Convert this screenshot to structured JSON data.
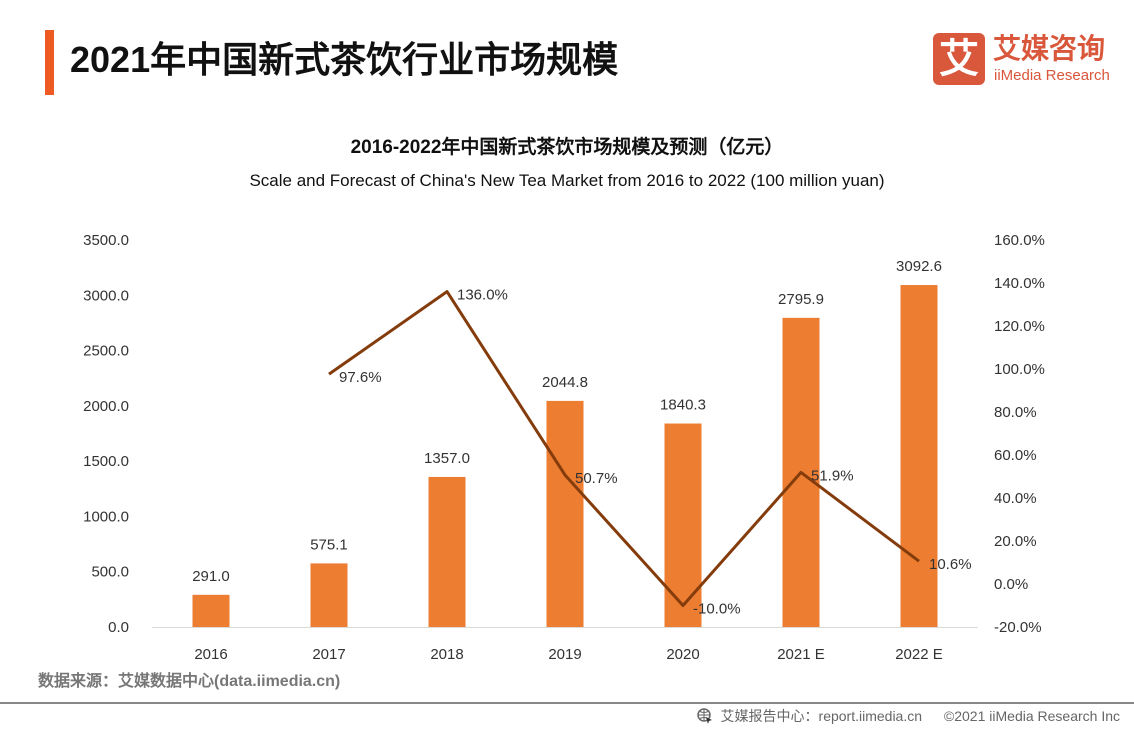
{
  "header": {
    "title": "2021年中国新式茶饮行业市场规模",
    "logo_mark": "艾",
    "logo_cn": "艾媒咨询",
    "logo_en": "iiMedia Research",
    "accent_color": "#ee5a24"
  },
  "chart_data": {
    "type": "bar+line",
    "title": "2016-2022年中国新式茶饮市场规模及预测（亿元）",
    "subtitle": "Scale and Forecast of China's New Tea Market from 2016 to 2022 (100 million yuan)",
    "categories": [
      "2016",
      "2017",
      "2018",
      "2019",
      "2020",
      "2021 E",
      "2022 E"
    ],
    "series": [
      {
        "type": "bar",
        "axis": "left",
        "values": [
          291.0,
          575.1,
          1357.0,
          2044.8,
          1840.3,
          2795.9,
          3092.6
        ],
        "labels": [
          "291.0",
          "575.1",
          "1357.0",
          "2044.8",
          "1840.3",
          "2795.9",
          "3092.6"
        ],
        "color": "#ed7d31"
      },
      {
        "type": "line",
        "axis": "right",
        "values": [
          null,
          97.6,
          136.0,
          50.7,
          -10.0,
          51.9,
          10.6
        ],
        "labels": [
          "",
          "97.6%",
          "136.0%",
          "50.7%",
          "-10.0%",
          "51.9%",
          "10.6%"
        ],
        "color": "#843c0c"
      }
    ],
    "left_axis": {
      "ylim": [
        0,
        3500
      ],
      "ticks": [
        "0.0",
        "500.0",
        "1000.0",
        "1500.0",
        "2000.0",
        "2500.0",
        "3000.0",
        "3500.0"
      ]
    },
    "right_axis": {
      "ylim": [
        -20,
        160
      ],
      "ticks": [
        "-20.0%",
        "0.0%",
        "20.0%",
        "40.0%",
        "60.0%",
        "80.0%",
        "100.0%",
        "120.0%",
        "140.0%",
        "160.0%"
      ]
    },
    "grid": false,
    "legend": "none"
  },
  "footer": {
    "source": "数据来源：艾媒数据中心(data.iimedia.cn)",
    "report": "艾媒报告中心：report.iimedia.cn",
    "copyright": "©2021  iiMedia Research  Inc",
    "icon": "globe-cursor-icon"
  }
}
